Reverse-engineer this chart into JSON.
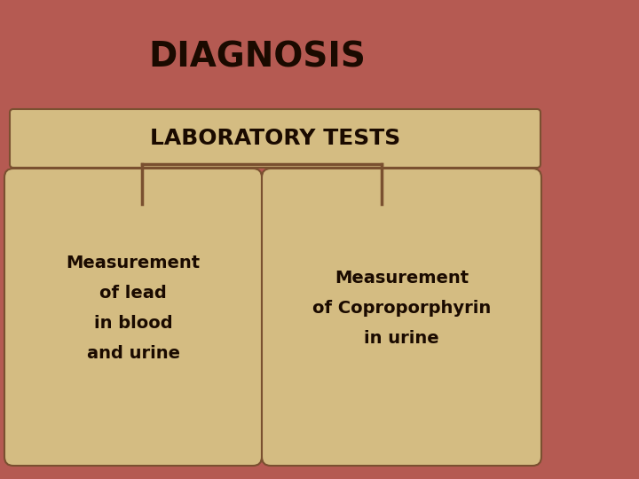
{
  "title": "DIAGNOSIS",
  "title_fontsize": 28,
  "title_color": "#1a0a00",
  "bg_color": "#b55a52",
  "header_box_color": "#d4bc82",
  "header_box_edge_color": "#7a5030",
  "header_text": "LABORATORY TESTS",
  "header_text_fontsize": 18,
  "card_color": "#d4bc82",
  "card_edge_color": "#7a5030",
  "card_text_color": "#1a0a00",
  "card_text_fontsize": 14,
  "left_card_text": "Measurement\nof lead\nin blood\nand urine",
  "right_card_text": "Measurement\nof Coproporphyrin\nin urine",
  "connector_color": "#7a5030",
  "figsize": [
    7.2,
    5.4
  ],
  "dpi": 100
}
